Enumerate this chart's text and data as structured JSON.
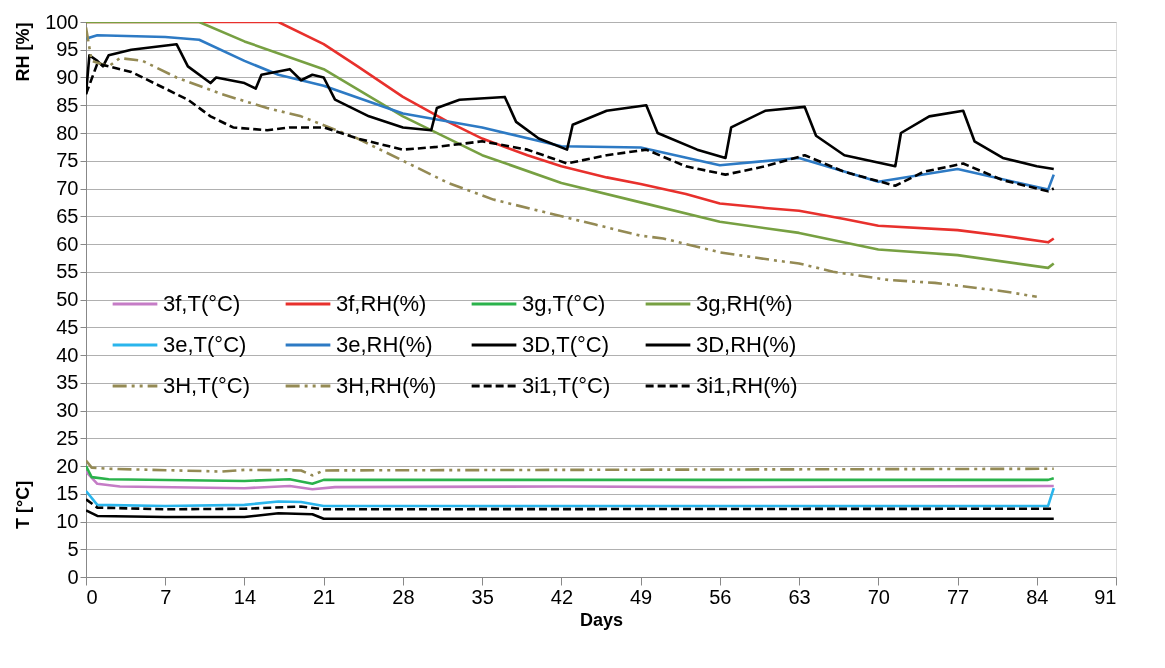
{
  "chart_data": {
    "type": "line",
    "xlabel": "Days",
    "ylabel": "RH [%]",
    "annotations": [
      "T [°C]"
    ],
    "xlim": [
      0,
      91
    ],
    "xticks": [
      0,
      7,
      14,
      21,
      28,
      35,
      42,
      49,
      56,
      63,
      70,
      77,
      84,
      91
    ],
    "ylim": [
      0,
      100
    ],
    "yticks": [
      0,
      5,
      10,
      15,
      20,
      25,
      30,
      35,
      40,
      45,
      50,
      55,
      60,
      65,
      70,
      75,
      80,
      85,
      90,
      95,
      100
    ],
    "grid": "y",
    "legend": "left",
    "marker": "none",
    "series": [
      {
        "name": "3f,T(°C)",
        "color": "#c57cc6",
        "line_style": "solid",
        "x": [
          0,
          1,
          3,
          14,
          18,
          20,
          22,
          42,
          56,
          70,
          85.5
        ],
        "values": [
          19,
          16.8,
          16.3,
          16,
          16.4,
          15.8,
          16.2,
          16.3,
          16.2,
          16.3,
          16.4
        ]
      },
      {
        "name": "3f,RH(%)",
        "color": "#e8302c",
        "line_style": "solid",
        "x": [
          0,
          17,
          21,
          24,
          28,
          32,
          35,
          39,
          42,
          46,
          49,
          53,
          56,
          60,
          63,
          67,
          70,
          77,
          81,
          85,
          85.5
        ],
        "values": [
          100,
          100,
          96,
          92,
          86.5,
          82,
          79,
          76,
          74,
          72,
          70.8,
          69,
          67.3,
          66.5,
          66,
          64.5,
          63.3,
          62.5,
          61.5,
          60.3,
          61
        ]
      },
      {
        "name": "3g,T(°C)",
        "color": "#2ab24b",
        "line_style": "solid",
        "x": [
          0,
          0.5,
          2,
          14,
          18,
          20,
          21,
          85,
          85.5
        ],
        "values": [
          20,
          18,
          17.6,
          17.3,
          17.6,
          16.8,
          17.5,
          17.5,
          17.8
        ]
      },
      {
        "name": "3g,RH(%)",
        "color": "#77a042",
        "line_style": "solid",
        "x": [
          0,
          10,
          14,
          21,
          28,
          35,
          42,
          49,
          56,
          63,
          70,
          77,
          85,
          85.5
        ],
        "values": [
          100,
          100,
          96.5,
          91.5,
          83,
          76,
          71,
          67.5,
          64,
          62,
          59,
          58,
          55.7,
          56.5
        ]
      },
      {
        "name": "3e,T(°C)",
        "color": "#2ab5ec",
        "line_style": "solid",
        "x": [
          0,
          1,
          7,
          14,
          17,
          19,
          21,
          85,
          85.5
        ],
        "values": [
          15.5,
          13,
          12.8,
          13,
          13.6,
          13.5,
          12.8,
          12.8,
          16
        ]
      },
      {
        "name": "3e,RH(%)",
        "color": "#2d7ac4",
        "line_style": "solid",
        "x": [
          0,
          1,
          7,
          10,
          14,
          17,
          21,
          28,
          35,
          42,
          49,
          56,
          63,
          70,
          77,
          85,
          85.5
        ],
        "values": [
          97,
          97.6,
          97.3,
          96.8,
          93,
          90.5,
          88.5,
          83.5,
          81,
          77.6,
          77.4,
          74.2,
          75.5,
          71.2,
          73.5,
          69.8,
          72.5
        ]
      },
      {
        "name": "3D,T(°C)",
        "color": "#000000",
        "line_style": "solid",
        "x": [
          0,
          1,
          7,
          14,
          17,
          20,
          21,
          85.5
        ],
        "values": [
          12,
          11,
          10.8,
          10.8,
          11.5,
          11.3,
          10.5,
          10.5
        ]
      },
      {
        "name": "3D,RH(%)",
        "color": "#000000",
        "line_style": "solid",
        "x": [
          0,
          0.3,
          1,
          1.5,
          2,
          4,
          6,
          8,
          9,
          11,
          11.5,
          14,
          15,
          15.5,
          18,
          19,
          20,
          21,
          22,
          25,
          28,
          30.5,
          31,
          33,
          37,
          38,
          40,
          42.5,
          43,
          46,
          49.5,
          50.5,
          54,
          56.5,
          57,
          60,
          63.5,
          64.5,
          67,
          71.5,
          72,
          74.5,
          77.5,
          78.5,
          81,
          84,
          85.5
        ],
        "values": [
          87,
          94,
          93,
          92,
          94,
          95,
          95.5,
          96,
          92,
          89,
          90,
          89,
          88,
          90.5,
          91.5,
          89.5,
          90.5,
          90,
          86,
          83,
          81,
          80.5,
          84.5,
          86,
          86.5,
          82,
          79,
          77,
          81.5,
          84,
          85,
          80,
          77,
          75.5,
          81,
          84,
          84.7,
          79.5,
          76,
          74,
          80,
          83,
          84,
          78.5,
          75.5,
          74,
          73.5
        ]
      },
      {
        "name": "3H,T(°C)",
        "color": "#948a54",
        "line_style": "dotted",
        "x": [
          0,
          0.5,
          2,
          12,
          14,
          19,
          20,
          21,
          42,
          63,
          85.5
        ],
        "values": [
          21,
          19.7,
          19.5,
          19,
          19.3,
          19.2,
          18.3,
          19.2,
          19.3,
          19.4,
          19.5
        ]
      },
      {
        "name": "3H,RH(%)",
        "color": "#948a54",
        "line_style": "dotted",
        "x": [
          0,
          0.5,
          2,
          3,
          5,
          8,
          12,
          16,
          19,
          24,
          28,
          32,
          36,
          40,
          45,
          49,
          51,
          56,
          61,
          63,
          66,
          71,
          75,
          77,
          81,
          84
        ],
        "values": [
          99,
          93,
          92,
          93.5,
          93,
          90,
          87,
          84.5,
          83,
          79,
          75,
          71,
          68,
          66,
          63.5,
          61.5,
          61,
          58.5,
          57,
          56.5,
          55,
          53.5,
          53,
          52.5,
          51.5,
          50.5
        ]
      },
      {
        "name": "3i1,T(°C)",
        "color": "#000000",
        "line_style": "dashed",
        "x": [
          0,
          1,
          7,
          14,
          19,
          21,
          85.5
        ],
        "values": [
          14,
          12.5,
          12.2,
          12.3,
          12.7,
          12.2,
          12.3
        ]
      },
      {
        "name": "3i1,RH(%)",
        "color": "#000000",
        "line_style": "dashed",
        "x": [
          0,
          1,
          4,
          6,
          9,
          11,
          13,
          16,
          18,
          21,
          24,
          28,
          31,
          35,
          39,
          42.5,
          46,
          49.5,
          53,
          56.5,
          60,
          63.5,
          67,
          71.5,
          74,
          77.5,
          81,
          85,
          85.5
        ],
        "values": [
          87,
          92.5,
          91,
          89,
          86,
          83,
          81,
          80.5,
          81,
          81,
          79,
          77,
          77.5,
          78.5,
          77,
          74.5,
          76,
          77,
          74,
          72.5,
          74,
          76,
          73,
          70.5,
          73,
          74.5,
          71.5,
          69.5,
          70
        ]
      }
    ]
  }
}
